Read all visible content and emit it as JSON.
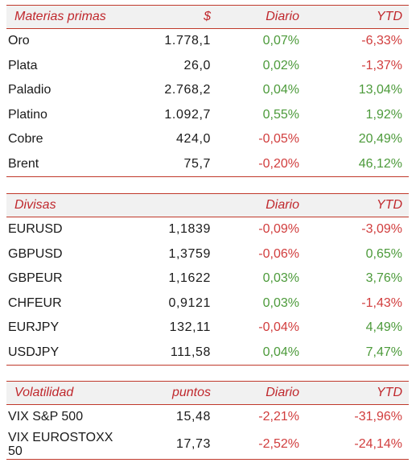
{
  "materias": {
    "header": [
      "Materias primas",
      "$",
      "Diario",
      "YTD"
    ],
    "rows": [
      {
        "name": "Oro",
        "price": "1.778,1",
        "daily": "0,07%",
        "ytd": "-6,33%",
        "daily_sign": "pos",
        "ytd_sign": "neg"
      },
      {
        "name": "Plata",
        "price": "26,0",
        "daily": "0,02%",
        "ytd": "-1,37%",
        "daily_sign": "pos",
        "ytd_sign": "neg"
      },
      {
        "name": "Paladio",
        "price": "2.768,2",
        "daily": "0,04%",
        "ytd": "13,04%",
        "daily_sign": "pos",
        "ytd_sign": "pos"
      },
      {
        "name": "Platino",
        "price": "1.092,7",
        "daily": "0,55%",
        "ytd": "1,92%",
        "daily_sign": "pos",
        "ytd_sign": "pos"
      },
      {
        "name": "Cobre",
        "price": "424,0",
        "daily": "-0,05%",
        "ytd": "20,49%",
        "daily_sign": "neg",
        "ytd_sign": "pos"
      },
      {
        "name": "Brent",
        "price": "75,7",
        "daily": "-0,20%",
        "ytd": "46,12%",
        "daily_sign": "neg",
        "ytd_sign": "pos"
      }
    ]
  },
  "divisas": {
    "header": [
      "Divisas",
      "",
      "Diario",
      "YTD"
    ],
    "rows": [
      {
        "name": "EURUSD",
        "price": "1,1839",
        "daily": "-0,09%",
        "ytd": "-3,09%",
        "daily_sign": "neg",
        "ytd_sign": "neg"
      },
      {
        "name": "GBPUSD",
        "price": "1,3759",
        "daily": "-0,06%",
        "ytd": "0,65%",
        "daily_sign": "neg",
        "ytd_sign": "pos"
      },
      {
        "name": "GBPEUR",
        "price": "1,1622",
        "daily": "0,03%",
        "ytd": "3,76%",
        "daily_sign": "pos",
        "ytd_sign": "pos"
      },
      {
        "name": "CHFEUR",
        "price": "0,9121",
        "daily": "0,03%",
        "ytd": "-1,43%",
        "daily_sign": "pos",
        "ytd_sign": "neg"
      },
      {
        "name": "EURJPY",
        "price": "132,11",
        "daily": "-0,04%",
        "ytd": "4,49%",
        "daily_sign": "neg",
        "ytd_sign": "pos"
      },
      {
        "name": "USDJPY",
        "price": "111,58",
        "daily": "0,04%",
        "ytd": "7,47%",
        "daily_sign": "pos",
        "ytd_sign": "pos"
      }
    ]
  },
  "volatilidad": {
    "header": [
      "Volatilidad",
      "puntos",
      "Diario",
      "YTD"
    ],
    "rows": [
      {
        "name": "VIX S&P 500",
        "price": "15,48",
        "daily": "-2,21%",
        "ytd": "-31,96%",
        "daily_sign": "neg",
        "ytd_sign": "neg"
      },
      {
        "name": "VIX EUROSTOXX 50",
        "price": "17,73",
        "daily": "-2,52%",
        "ytd": "-24,14%",
        "daily_sign": "neg",
        "ytd_sign": "neg"
      }
    ]
  },
  "colors": {
    "accent": "#c0282d",
    "positive": "#4c9a3a",
    "negative": "#d13d3d",
    "header_bg": "#f1f1f1"
  }
}
